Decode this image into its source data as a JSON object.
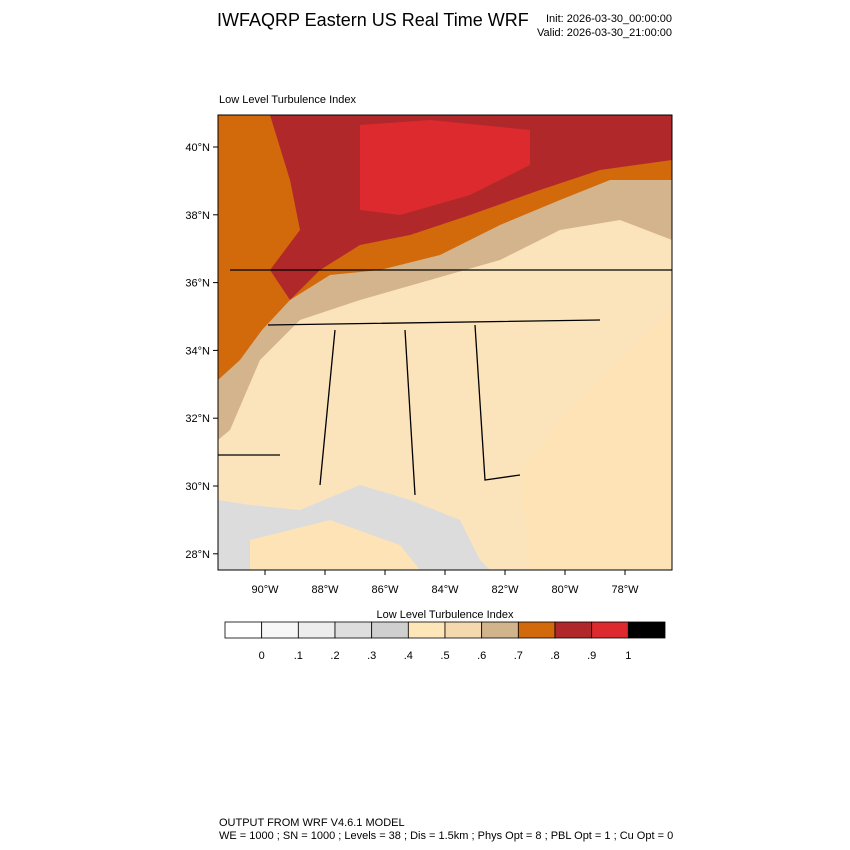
{
  "header": {
    "title": "IWFAQRP Eastern US Real Time WRF",
    "init": "Init: 2026-03-30_00:00:00",
    "valid": "Valid: 2026-03-30_21:00:00"
  },
  "map": {
    "title": "Low Level Turbulence Index",
    "lat_labels": [
      "40°N",
      "38°N",
      "36°N",
      "34°N",
      "32°N",
      "30°N",
      "28°N"
    ],
    "lon_labels": [
      "90°W",
      "88°W",
      "86°W",
      "84°W",
      "82°W",
      "80°W",
      "78°W"
    ]
  },
  "colorbar": {
    "title": "Low Level Turbulence Index",
    "colors": [
      "#ffffff",
      "#f7f7f7",
      "#ededed",
      "#dedede",
      "#cfcfcf",
      "#ffe6b8",
      "#f3d9ad",
      "#d2b48c",
      "#d2690b",
      "#b1282a",
      "#dc2a2e",
      "#000000"
    ],
    "labels": [
      "0",
      ".1",
      ".2",
      ".3",
      ".4",
      ".5",
      ".6",
      ".7",
      ".8",
      ".9",
      "1"
    ]
  },
  "footer": {
    "line1": "OUTPUT FROM WRF V4.6.1 MODEL",
    "line2": "WE = 1000 ; SN = 1000 ; Levels = 38 ; Dis = 1.5km ; Phys Opt = 8 ; PBL Opt = 1 ; Cu Opt = 0"
  }
}
